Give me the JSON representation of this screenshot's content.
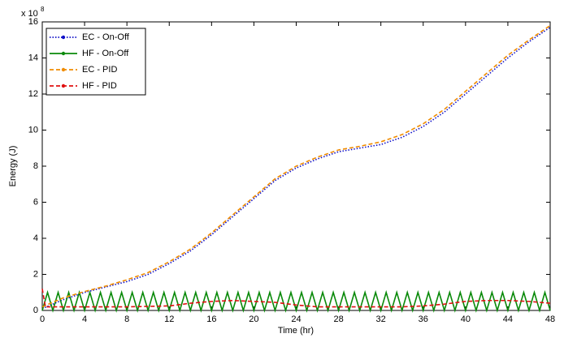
{
  "chart_data": {
    "type": "line",
    "y_label": "Energy (J)",
    "x_label": "Time (hr)",
    "y_scale_base": "x 10",
    "y_scale_exponent": "8",
    "xlim": [
      0,
      48
    ],
    "xticks": [
      0,
      4,
      8,
      12,
      16,
      20,
      24,
      28,
      32,
      36,
      40,
      44,
      48
    ],
    "ylim": [
      0,
      16
    ],
    "yticks": [
      0,
      2,
      4,
      6,
      8,
      10,
      12,
      14,
      16
    ],
    "legend": "upper-left",
    "series": [
      {
        "name": "EC - On-Off",
        "color": "#1010c8",
        "dash": "dotted",
        "x": [
          0,
          2,
          4,
          6,
          8,
          10,
          12,
          14,
          16,
          18,
          20,
          22,
          24,
          26,
          28,
          30,
          32,
          34,
          36,
          38,
          40,
          42,
          44,
          46,
          48
        ],
        "values": [
          0.1,
          0.6,
          1.0,
          1.3,
          1.6,
          2.0,
          2.6,
          3.3,
          4.2,
          5.2,
          6.2,
          7.2,
          7.9,
          8.4,
          8.8,
          9.0,
          9.2,
          9.6,
          10.2,
          11.0,
          12.0,
          13.0,
          14.0,
          14.9,
          15.7
        ]
      },
      {
        "name": "HF - On-Off",
        "color": "#0a8a0a",
        "dash": "solid",
        "x": [
          0,
          0.5,
          1,
          1.5,
          2,
          2.5,
          3,
          3.5,
          4,
          4.5,
          5,
          5.5,
          6,
          6.5,
          7,
          7.5,
          8,
          8.5,
          9,
          9.5,
          10,
          10.5,
          11,
          11.5,
          12,
          12.5,
          13,
          13.5,
          14,
          14.5,
          15,
          15.5,
          16,
          16.5,
          17,
          17.5,
          18,
          18.5,
          19,
          19.5,
          20,
          20.5,
          21,
          21.5,
          22,
          22.5,
          23,
          23.5,
          24,
          24.5,
          25,
          25.5,
          26,
          26.5,
          27,
          27.5,
          28,
          28.5,
          29,
          29.5,
          30,
          30.5,
          31,
          31.5,
          32,
          32.5,
          33,
          33.5,
          34,
          34.5,
          35,
          35.5,
          36,
          36.5,
          37,
          37.5,
          38,
          38.5,
          39,
          39.5,
          40,
          40.5,
          41,
          41.5,
          42,
          42.5,
          43,
          43.5,
          44,
          44.5,
          45,
          45.5,
          46,
          46.5,
          47,
          47.5,
          48
        ],
        "values": [
          0,
          1,
          0,
          1,
          0,
          1,
          0,
          1,
          0,
          1,
          0,
          1,
          0,
          1,
          0,
          1,
          0,
          1,
          0,
          1,
          0,
          1,
          0,
          1,
          0,
          1,
          0,
          1,
          0,
          1,
          0,
          1,
          0,
          1,
          0,
          1,
          0,
          1,
          0,
          1,
          0,
          1,
          0,
          1,
          0,
          1,
          0,
          1,
          0,
          1,
          0,
          1,
          0,
          1,
          0,
          1,
          0,
          1,
          0,
          1,
          0,
          1,
          0,
          1,
          0,
          1,
          0,
          1,
          0,
          1,
          0,
          1,
          0,
          1,
          0,
          1,
          0,
          1,
          0,
          1,
          0,
          1,
          0,
          1,
          0,
          1,
          0,
          1,
          0,
          1,
          0,
          1,
          0,
          1,
          0,
          1,
          0
        ]
      },
      {
        "name": "EC - PID",
        "color": "#f08c00",
        "dash": "dashed",
        "x": [
          0,
          2,
          4,
          6,
          8,
          10,
          12,
          14,
          16,
          18,
          20,
          22,
          24,
          26,
          28,
          30,
          32,
          34,
          36,
          38,
          40,
          42,
          44,
          46,
          48
        ],
        "values": [
          0.2,
          0.7,
          1.05,
          1.35,
          1.7,
          2.1,
          2.7,
          3.4,
          4.3,
          5.3,
          6.3,
          7.3,
          8.0,
          8.5,
          8.9,
          9.1,
          9.35,
          9.75,
          10.35,
          11.15,
          12.15,
          13.15,
          14.15,
          15.0,
          15.8
        ]
      },
      {
        "name": "HF - PID",
        "color": "#e01010",
        "dash": "dashed",
        "x": [
          0,
          0.3,
          2,
          4,
          8,
          12,
          14,
          16,
          18,
          20,
          22,
          24,
          26,
          30,
          34,
          36,
          38,
          40,
          42,
          44,
          46,
          48
        ],
        "values": [
          1.2,
          0.2,
          0.2,
          0.2,
          0.2,
          0.25,
          0.4,
          0.5,
          0.55,
          0.5,
          0.45,
          0.3,
          0.2,
          0.2,
          0.2,
          0.25,
          0.35,
          0.5,
          0.55,
          0.55,
          0.5,
          0.4
        ]
      }
    ]
  }
}
